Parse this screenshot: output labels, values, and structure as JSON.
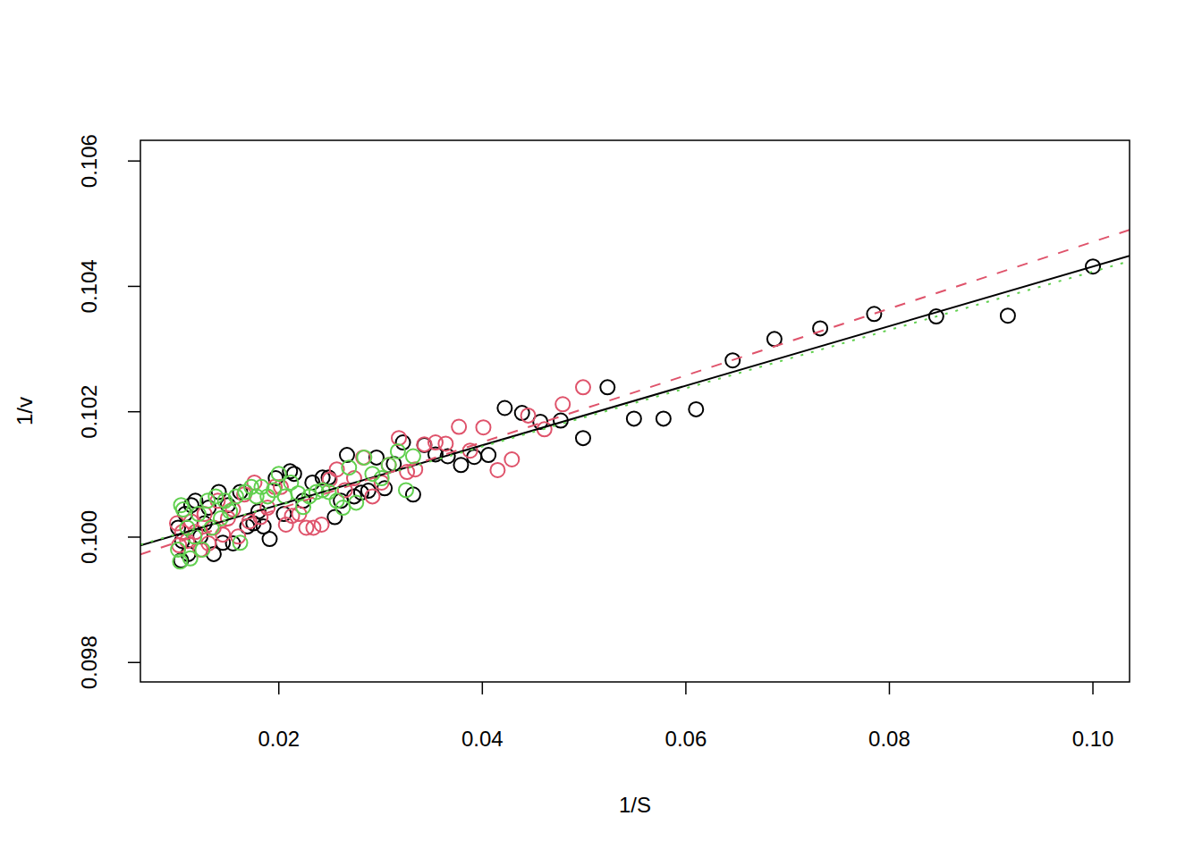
{
  "chart_data": {
    "type": "scatter",
    "x_label": "1/S",
    "y_label": "1/v",
    "xlim": [
      0.0064,
      0.1036
    ],
    "ylim": [
      0.09769,
      0.10633
    ],
    "xticks": [
      0.02,
      0.04,
      0.06,
      0.08,
      {
        "value": 0.1,
        "label": "0.10"
      }
    ],
    "yticks": [
      0.098,
      {
        "value": 0.1,
        "label": "0.100"
      },
      0.102,
      0.104,
      0.106
    ],
    "series": [
      {
        "type": "scatter",
        "marker": "open-circle",
        "color": "#000000",
        "x": [
          0.1,
          0.09164,
          0.0846,
          0.0785,
          0.0732,
          0.0687,
          0.0646,
          0.061,
          0.0578,
          0.0549,
          0.0523,
          0.0499,
          0.0477,
          0.0457,
          0.0439,
          0.0422,
          0.0406,
          0.0392,
          0.0379,
          0.0366,
          0.0354,
          0.0343,
          0.0332,
          0.0322,
          0.0313,
          0.0304,
          0.0296,
          0.0288,
          0.0281,
          0.0274,
          0.0267,
          0.0261,
          0.0255,
          0.0249,
          0.0243,
          0.0233,
          0.0224,
          0.0215,
          0.0211,
          0.0205,
          0.0197,
          0.0191,
          0.0185,
          0.018,
          0.0175,
          0.0169,
          0.0162,
          0.0155,
          0.015,
          0.0145,
          0.0141,
          0.0136,
          0.0131,
          0.0127,
          0.0123,
          0.0118,
          0.0114,
          0.0111,
          0.0108,
          0.0104,
          0.0101,
          0.0105
        ],
        "values": [
          0.104317,
          0.103533,
          0.10352,
          0.10356,
          0.10333,
          0.10316,
          0.10282,
          0.10204,
          0.10189,
          0.10189,
          0.10239,
          0.10158,
          0.10186,
          0.10184,
          0.10198,
          0.10206,
          0.10131,
          0.10128,
          0.10115,
          0.10129,
          0.10132,
          0.10147,
          0.10068,
          0.10151,
          0.10117,
          0.10078,
          0.10127,
          0.10074,
          0.10071,
          0.10065,
          0.10131,
          0.10058,
          0.10032,
          0.10095,
          0.10095,
          0.10087,
          0.10058,
          0.10101,
          0.10105,
          0.10037,
          0.10094,
          0.09997,
          0.10017,
          0.10041,
          0.10022,
          0.10017,
          0.10072,
          0.0999,
          0.10051,
          0.09991,
          0.10072,
          0.09973,
          0.10047,
          0.10022,
          0.10001,
          0.10058,
          0.10051,
          0.09973,
          0.10037,
          0.09963,
          0.10015,
          0.09994
        ]
      },
      {
        "type": "scatter",
        "marker": "open-circle",
        "color": "#DF536B",
        "x": [
          0.0499,
          0.0479,
          0.0461,
          0.0445,
          0.0429,
          0.0415,
          0.0401,
          0.0388,
          0.0377,
          0.0364,
          0.0354,
          0.0343,
          0.0334,
          0.0326,
          0.0318,
          0.0308,
          0.0301,
          0.0292,
          0.0283,
          0.0274,
          0.0265,
          0.0257,
          0.025,
          0.0242,
          0.0234,
          0.0227,
          0.022,
          0.0213,
          0.0207,
          0.0202,
          0.0196,
          0.0189,
          0.0182,
          0.0176,
          0.0171,
          0.0166,
          0.016,
          0.0155,
          0.015,
          0.0145,
          0.014,
          0.0136,
          0.0131,
          0.0127,
          0.0123,
          0.0118,
          0.0114,
          0.011,
          0.0105,
          0.0102,
          0.01
        ],
        "values": [
          0.10239,
          0.10212,
          0.10172,
          0.10194,
          0.10124,
          0.10107,
          0.10175,
          0.10138,
          0.10176,
          0.10149,
          0.10151,
          0.10148,
          0.10108,
          0.10104,
          0.10158,
          0.10115,
          0.10087,
          0.10065,
          0.10127,
          0.10094,
          0.10075,
          0.10108,
          0.10092,
          0.1002,
          0.10015,
          0.10015,
          0.10037,
          0.10034,
          0.1002,
          0.1008,
          0.1008,
          0.10047,
          0.10032,
          0.10087,
          0.10025,
          0.10068,
          0.10001,
          0.10044,
          0.1003,
          0.10004,
          0.10058,
          0.10015,
          0.0999,
          0.10037,
          0.0998,
          0.10008,
          0.10025,
          0.09994,
          0.10008,
          0.09987,
          0.10022
        ]
      },
      {
        "type": "scatter",
        "marker": "open-circle",
        "color": "#61D04F",
        "x": [
          0.0332,
          0.0325,
          0.0317,
          0.0308,
          0.0301,
          0.0292,
          0.0284,
          0.0276,
          0.0269,
          0.0263,
          0.0257,
          0.0249,
          0.0243,
          0.0237,
          0.023,
          0.0224,
          0.0219,
          0.0212,
          0.0206,
          0.02,
          0.0195,
          0.0189,
          0.0183,
          0.0178,
          0.0173,
          0.0167,
          0.0162,
          0.0158,
          0.0152,
          0.0147,
          0.0143,
          0.0138,
          0.0134,
          0.013,
          0.0125,
          0.0121,
          0.0117,
          0.0113,
          0.011,
          0.0106,
          0.0103,
          0.0101,
          0.0104
        ],
        "values": [
          0.10129,
          0.10075,
          0.10137,
          0.10115,
          0.10094,
          0.10101,
          0.10127,
          0.10055,
          0.10111,
          0.10047,
          0.10058,
          0.10072,
          0.10075,
          0.10072,
          0.10065,
          0.10048,
          0.1007,
          0.10087,
          0.10065,
          0.10101,
          0.10075,
          0.10065,
          0.1008,
          0.10065,
          0.1008,
          0.10072,
          0.09991,
          0.10065,
          0.10041,
          0.10058,
          0.1003,
          0.10065,
          0.10015,
          0.10058,
          0.0998,
          0.10037,
          0.10001,
          0.09966,
          0.10015,
          0.10044,
          0.09961,
          0.0998,
          0.10051
        ]
      },
      {
        "type": "line",
        "line_style": "solid",
        "color": "#000000",
        "x": [
          0.0064,
          0.1036
        ],
        "values": [
          0.099868,
          0.104488
        ]
      },
      {
        "type": "line",
        "line_style": "dashed",
        "color": "#DF536B",
        "x": [
          0.0064,
          0.1036
        ],
        "values": [
          0.099725,
          0.104902
        ]
      },
      {
        "type": "line",
        "line_style": "dotted",
        "color": "#61D04F",
        "x": [
          0.0064,
          0.1036
        ],
        "values": [
          0.099882,
          0.104403
        ]
      }
    ]
  }
}
